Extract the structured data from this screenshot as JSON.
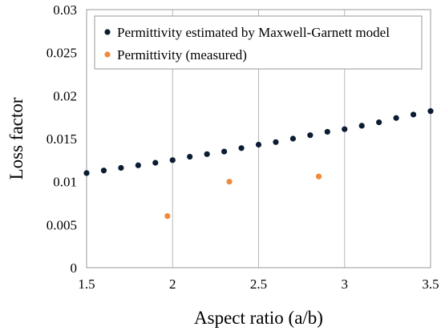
{
  "chart_data": {
    "type": "scatter",
    "xlabel": "Aspect  ratio (a/b)",
    "ylabel": "Loss factor",
    "xlim": [
      1.5,
      3.5
    ],
    "ylim": [
      0,
      0.03
    ],
    "xticks": [
      1.5,
      2,
      2.5,
      3,
      3.5
    ],
    "yticks": [
      0,
      0.005,
      0.01,
      0.015,
      0.02,
      0.025,
      0.03
    ],
    "xtick_labels": [
      "1.5",
      "2",
      "2.5",
      "3",
      "3.5"
    ],
    "ytick_labels": [
      "0",
      "0.005",
      "0.01",
      "0.015",
      "0.02",
      "0.025",
      "0.03"
    ],
    "grid": "vertical",
    "legend_position": "top",
    "series": [
      {
        "name": "Permittivity estimated by Maxwell-Garnett model",
        "color": "#0b1c33",
        "x": [
          1.5,
          1.6,
          1.7,
          1.8,
          1.9,
          2.0,
          2.1,
          2.2,
          2.3,
          2.4,
          2.5,
          2.6,
          2.7,
          2.8,
          2.9,
          3.0,
          3.1,
          3.2,
          3.3,
          3.4,
          3.5
        ],
        "y": [
          0.011,
          0.0113,
          0.0116,
          0.0119,
          0.0122,
          0.0125,
          0.0129,
          0.0132,
          0.0135,
          0.0139,
          0.0143,
          0.0146,
          0.015,
          0.0154,
          0.0158,
          0.0161,
          0.0165,
          0.0169,
          0.0174,
          0.0178,
          0.0182
        ]
      },
      {
        "name": "Permittivity (measured)",
        "color": "#f08a3a",
        "x": [
          1.97,
          2.33,
          2.85
        ],
        "y": [
          0.006,
          0.01,
          0.0106
        ]
      }
    ]
  }
}
